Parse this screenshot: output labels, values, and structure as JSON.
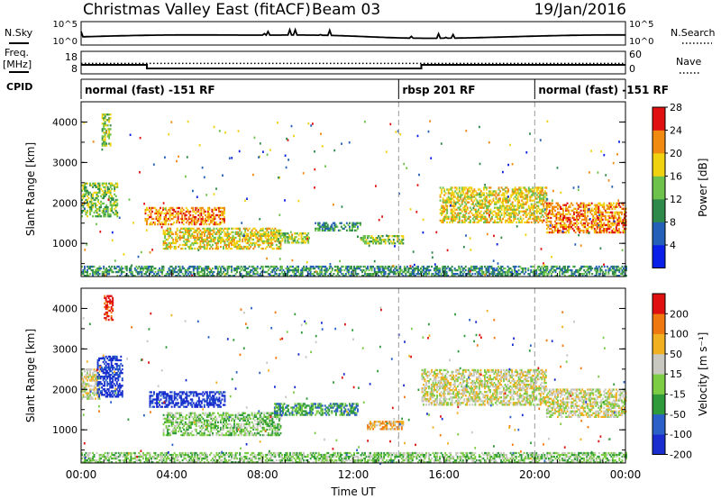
{
  "header": {
    "title": "Christmas Valley East (fitACF)",
    "beam": "Beam 03",
    "date": "19/Jan/2016"
  },
  "noise_panel": {
    "left_label": "N.Sky",
    "right_label": "N.Search",
    "ticks_left": [
      "10^5",
      "10^0"
    ],
    "ticks_right": [
      "10^5",
      "10^0"
    ]
  },
  "freq_panel": {
    "left_label_1": "Freq.",
    "left_label_2": "[MHz]",
    "right_label": "Nave",
    "ticks_left": [
      "18",
      "8"
    ],
    "ticks_right": [
      "60",
      "0"
    ],
    "freq_mhz": [
      {
        "start": 0.0,
        "end": 2.9,
        "value": 12
      },
      {
        "start": 2.9,
        "end": 15.0,
        "value": 10.4
      },
      {
        "start": 15.0,
        "end": 24.0,
        "value": 12
      }
    ],
    "nave": 28
  },
  "cpid": {
    "label": "CPID",
    "segments": [
      {
        "start": 0.0,
        "end": 14.0,
        "text": "normal (fast) -151 RF"
      },
      {
        "start": 14.0,
        "end": 20.0,
        "text": "rbsp 201 RF"
      },
      {
        "start": 20.0,
        "end": 24.0,
        "text": "normal (fast) -151 RF"
      }
    ]
  },
  "chart_data": [
    {
      "type": "heatmap",
      "name": "power",
      "ylabel": "Slant Range [km]",
      "ylim": [
        180,
        4500
      ],
      "yticks": [
        "1000",
        "2000",
        "3000",
        "4000"
      ],
      "colorbar": {
        "label": "Power [dB]",
        "ticks": [
          "4",
          "8",
          "12",
          "16",
          "20",
          "24",
          "28"
        ],
        "colors": [
          "#0a1fe8",
          "#245fb8",
          "#2e8a4a",
          "#6cc24a",
          "#f0d210",
          "#f08a10",
          "#e01010"
        ]
      },
      "echo_regions": [
        {
          "t0": 0.0,
          "t1": 1.6,
          "r0": 1650,
          "r1": 2500,
          "level": 3
        },
        {
          "t0": 0.9,
          "t1": 1.3,
          "r0": 3400,
          "r1": 4200,
          "level": 3
        },
        {
          "t0": 2.8,
          "t1": 6.3,
          "r0": 1450,
          "r1": 1900,
          "level": 5
        },
        {
          "t0": 3.6,
          "t1": 8.8,
          "r0": 850,
          "r1": 1350,
          "level": 4
        },
        {
          "t0": 8.6,
          "t1": 10.0,
          "r0": 1000,
          "r1": 1250,
          "level": 3
        },
        {
          "t0": 10.3,
          "t1": 12.3,
          "r0": 1300,
          "r1": 1520,
          "level": 2
        },
        {
          "t0": 12.3,
          "t1": 14.2,
          "r0": 980,
          "r1": 1180,
          "level": 3
        },
        {
          "t0": 15.8,
          "t1": 20.5,
          "r0": 1500,
          "r1": 2400,
          "level": 4
        },
        {
          "t0": 20.5,
          "t1": 24.0,
          "r0": 1250,
          "r1": 2000,
          "level": 5
        },
        {
          "t0": 0.0,
          "t1": 24.0,
          "r0": 180,
          "r1": 420,
          "level": 2
        }
      ]
    },
    {
      "type": "heatmap",
      "name": "velocity",
      "ylabel": "Slant Range [km]",
      "ylim": [
        180,
        4500
      ],
      "yticks": [
        "1000",
        "2000",
        "3000",
        "4000"
      ],
      "xlabel": "Time UT",
      "xticks": [
        "00:00",
        "04:00",
        "08:00",
        "12:00",
        "16:00",
        "20:00",
        "00:00"
      ],
      "colorbar": {
        "label": "Velocity [m s⁻¹]",
        "ticks": [
          "200",
          "100",
          "50",
          "15",
          "-15",
          "-50",
          "-100",
          "-200"
        ],
        "colors": [
          "#1a2ed0",
          "#2b60c8",
          "#2e9a3a",
          "#7ccc44",
          "#c8c8c0",
          "#f0b020",
          "#f07810",
          "#e01010"
        ]
      },
      "echo_regions": [
        {
          "t0": 0.0,
          "t1": 0.8,
          "r0": 1750,
          "r1": 2500,
          "level": 4
        },
        {
          "t0": 0.7,
          "t1": 1.8,
          "r0": 1800,
          "r1": 2800,
          "level": 0
        },
        {
          "t0": 1.0,
          "t1": 1.4,
          "r0": 3700,
          "r1": 4300,
          "level": 7
        },
        {
          "t0": 3.0,
          "t1": 6.3,
          "r0": 1550,
          "r1": 1950,
          "level": 0
        },
        {
          "t0": 3.6,
          "t1": 8.8,
          "r0": 850,
          "r1": 1400,
          "level": 3
        },
        {
          "t0": 8.5,
          "t1": 12.2,
          "r0": 1350,
          "r1": 1650,
          "level": 2
        },
        {
          "t0": 12.6,
          "t1": 14.2,
          "r0": 1000,
          "r1": 1200,
          "level": 5
        },
        {
          "t0": 15.0,
          "t1": 20.5,
          "r0": 1600,
          "r1": 2500,
          "level": 4
        },
        {
          "t0": 20.5,
          "t1": 24.0,
          "r0": 1300,
          "r1": 2000,
          "level": 4
        },
        {
          "t0": 0.0,
          "t1": 24.0,
          "r0": 180,
          "r1": 420,
          "level": 3
        }
      ]
    }
  ]
}
